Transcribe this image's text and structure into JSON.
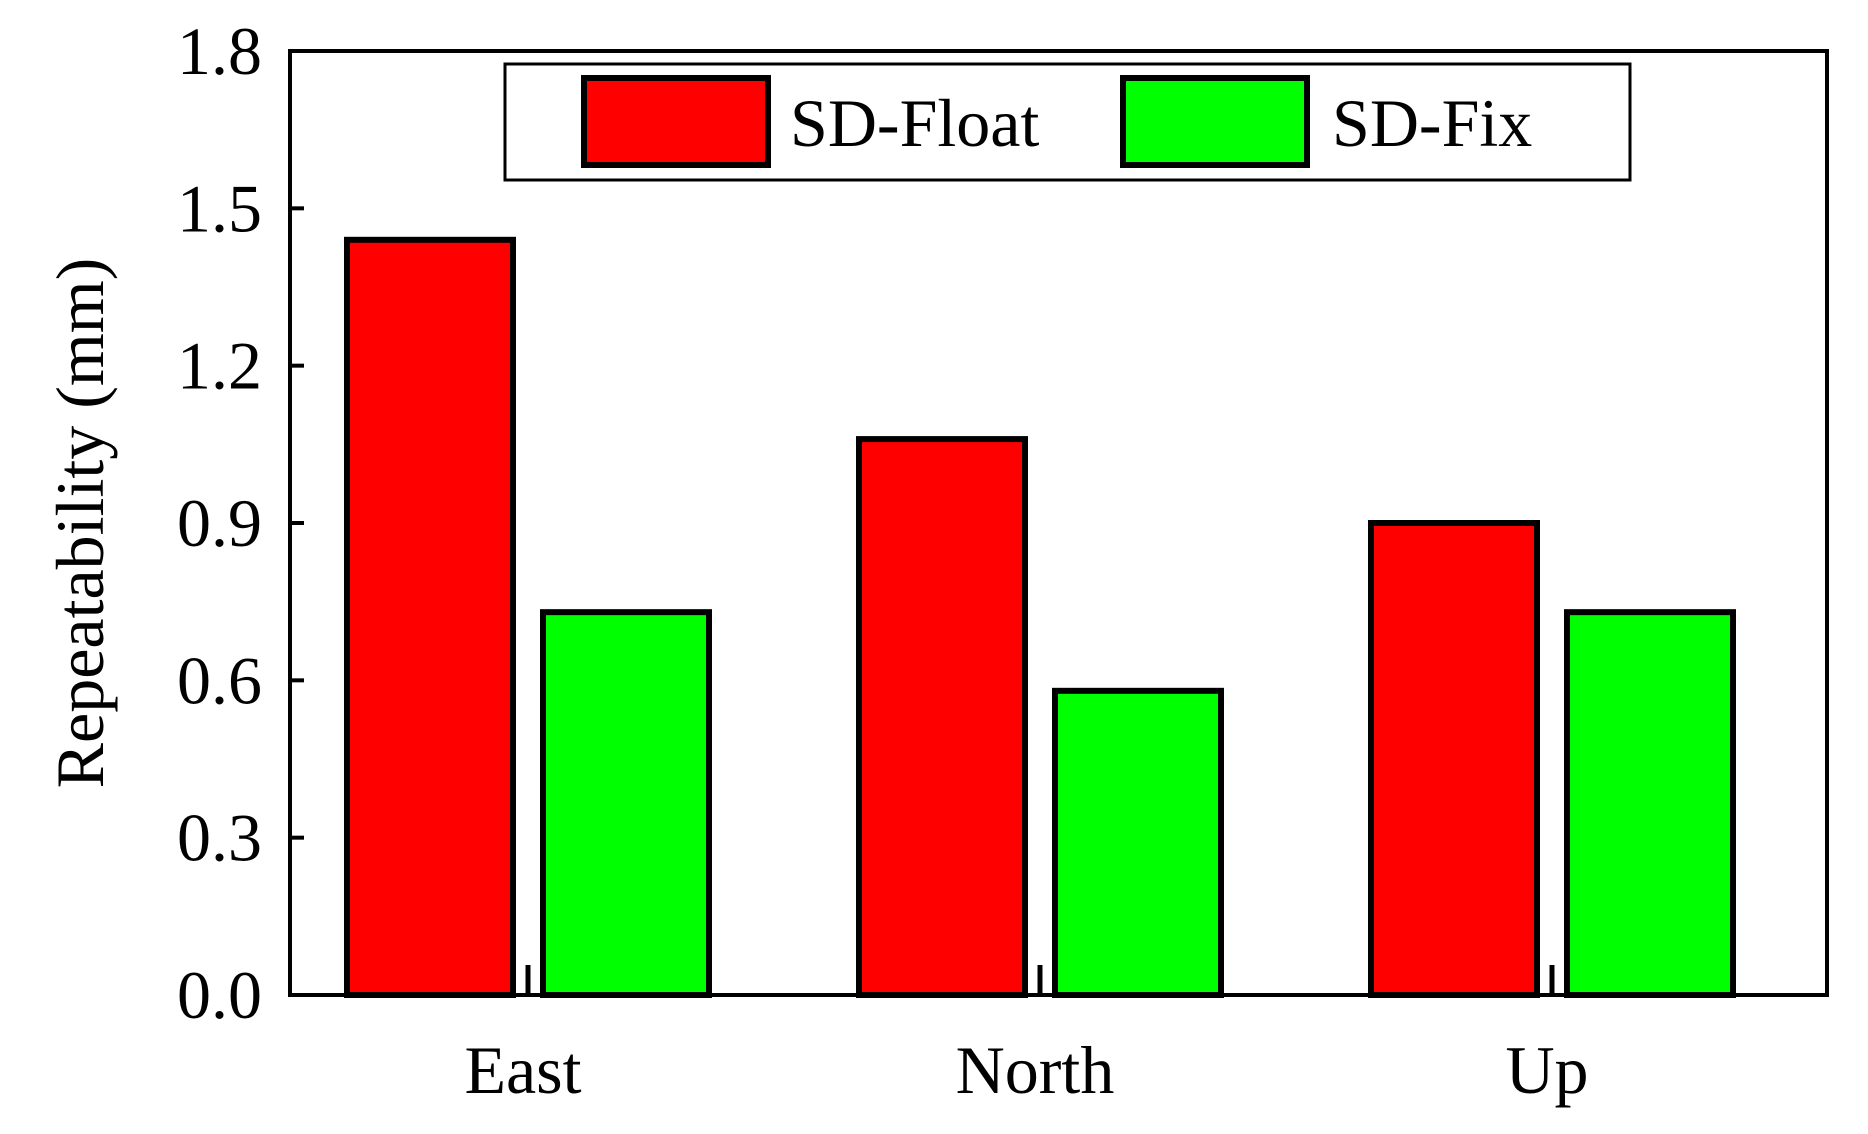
{
  "chart_data": {
    "type": "bar",
    "title": "",
    "xlabel": "",
    "ylabel": "Repeatability (mm)",
    "categories": [
      "East",
      "North",
      "Up"
    ],
    "series": [
      {
        "name": "SD-Float",
        "color": "#ff0000",
        "values": [
          1.44,
          1.06,
          0.9
        ]
      },
      {
        "name": "SD-Fix",
        "color": "#00ff00",
        "values": [
          0.73,
          0.58,
          0.73
        ]
      }
    ],
    "ylim": [
      0,
      1.8
    ],
    "yticks": [
      "0.0",
      "0.3",
      "0.6",
      "0.9",
      "1.2",
      "1.5",
      "1.8"
    ],
    "grid": false,
    "legend_position": "top"
  }
}
